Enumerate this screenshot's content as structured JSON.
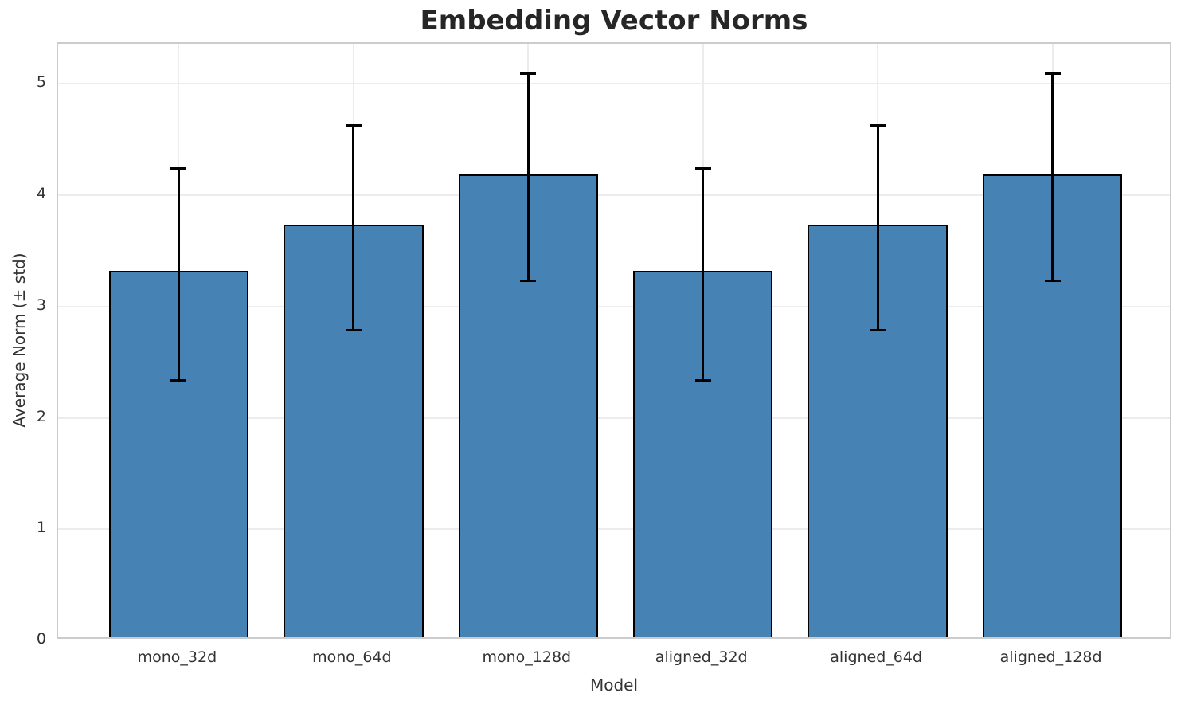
{
  "chart_data": {
    "type": "bar",
    "title": "Embedding Vector Norms",
    "xlabel": "Model",
    "ylabel": "Average Norm (± std)",
    "categories": [
      "mono_32d",
      "mono_64d",
      "mono_128d",
      "aligned_32d",
      "aligned_64d",
      "aligned_128d"
    ],
    "values": [
      3.29,
      3.71,
      4.16,
      3.29,
      3.71,
      4.16
    ],
    "errors": [
      0.95,
      0.92,
      0.93,
      0.95,
      0.92,
      0.93
    ],
    "yticks": [
      "0",
      "1",
      "2",
      "3",
      "4",
      "5"
    ],
    "ytick_values": [
      0,
      1,
      2,
      3,
      4,
      5
    ],
    "ylim": [
      0,
      5.36
    ],
    "grid": true,
    "legend": "none",
    "bar_color": "#4682B4",
    "bar_edge_color": "#000000",
    "error_color": "#000000",
    "grid_color": "#ececec",
    "spine_color": "#cccccc",
    "title_color": "#262626",
    "tick_color": "#333333"
  }
}
